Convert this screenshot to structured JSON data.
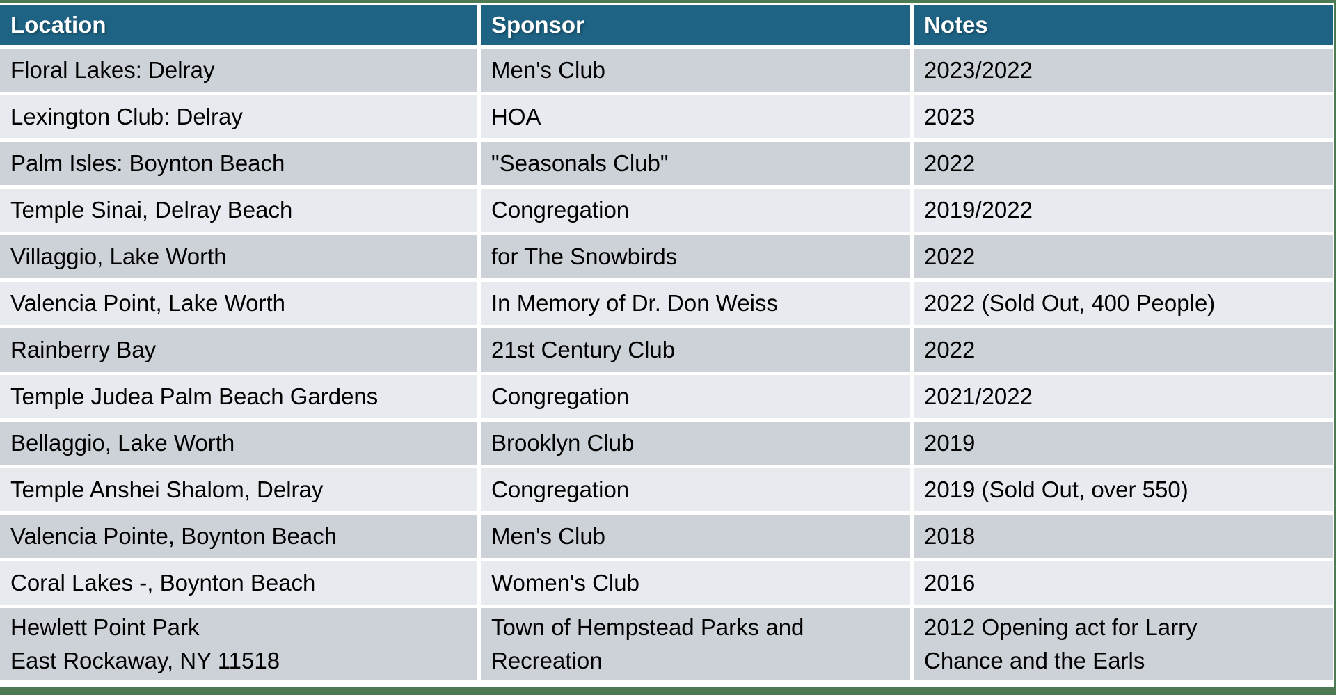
{
  "colors": {
    "header_bg": "#1E6384",
    "header_text": "#FFFFFF",
    "row_dark": "#CDD1D8",
    "row_light": "#E7EAEE",
    "divider": "#FFFFFF",
    "body_text": "#000000",
    "slide_background": "#4D7A52"
  },
  "table": {
    "columns": [
      "Location",
      "Sponsor",
      "Notes"
    ],
    "rows": [
      {
        "location": "Floral Lakes: Delray",
        "sponsor": "Men's Club",
        "notes": "2023/2022"
      },
      {
        "location": "Lexington Club: Delray",
        "sponsor": "HOA",
        "notes": "2023"
      },
      {
        "location": "Palm Isles: Boynton Beach",
        "sponsor": "\"Seasonals Club\"",
        "notes": "2022"
      },
      {
        "location": "Temple Sinai, Delray Beach",
        "sponsor": "Congregation",
        "notes": "2019/2022"
      },
      {
        "location": "Villaggio, Lake Worth",
        "sponsor": "for The Snowbirds",
        "notes": "2022"
      },
      {
        "location": "Valencia Point, Lake Worth",
        "sponsor": "In Memory of Dr. Don Weiss",
        "notes": "2022 (Sold Out, 400 People)"
      },
      {
        "location": " Rainberry Bay",
        "sponsor": "21st Century Club",
        "notes": "2022"
      },
      {
        "location": "Temple Judea Palm Beach Gardens",
        "sponsor": "Congregation",
        "notes": "2021/2022"
      },
      {
        "location": "Bellaggio, Lake Worth",
        "sponsor": "Brooklyn Club",
        "notes": "2019"
      },
      {
        "location": "Temple Anshei Shalom, Delray",
        "sponsor": "Congregation",
        "notes": "2019 (Sold Out, over 550)"
      },
      {
        "location": "Valencia Pointe, Boynton Beach",
        "sponsor": "Men's Club",
        "notes": "2018"
      },
      {
        "location": "Coral Lakes -, Boynton Beach",
        "sponsor": "Women's Club",
        "notes": "2016"
      },
      {
        "location": "Hewlett Point Park\nEast Rockaway, NY 11518",
        "sponsor": "Town of Hempstead Parks  and\nRecreation",
        "notes": "2012 Opening act for Larry\nChance and the Earls"
      }
    ]
  }
}
